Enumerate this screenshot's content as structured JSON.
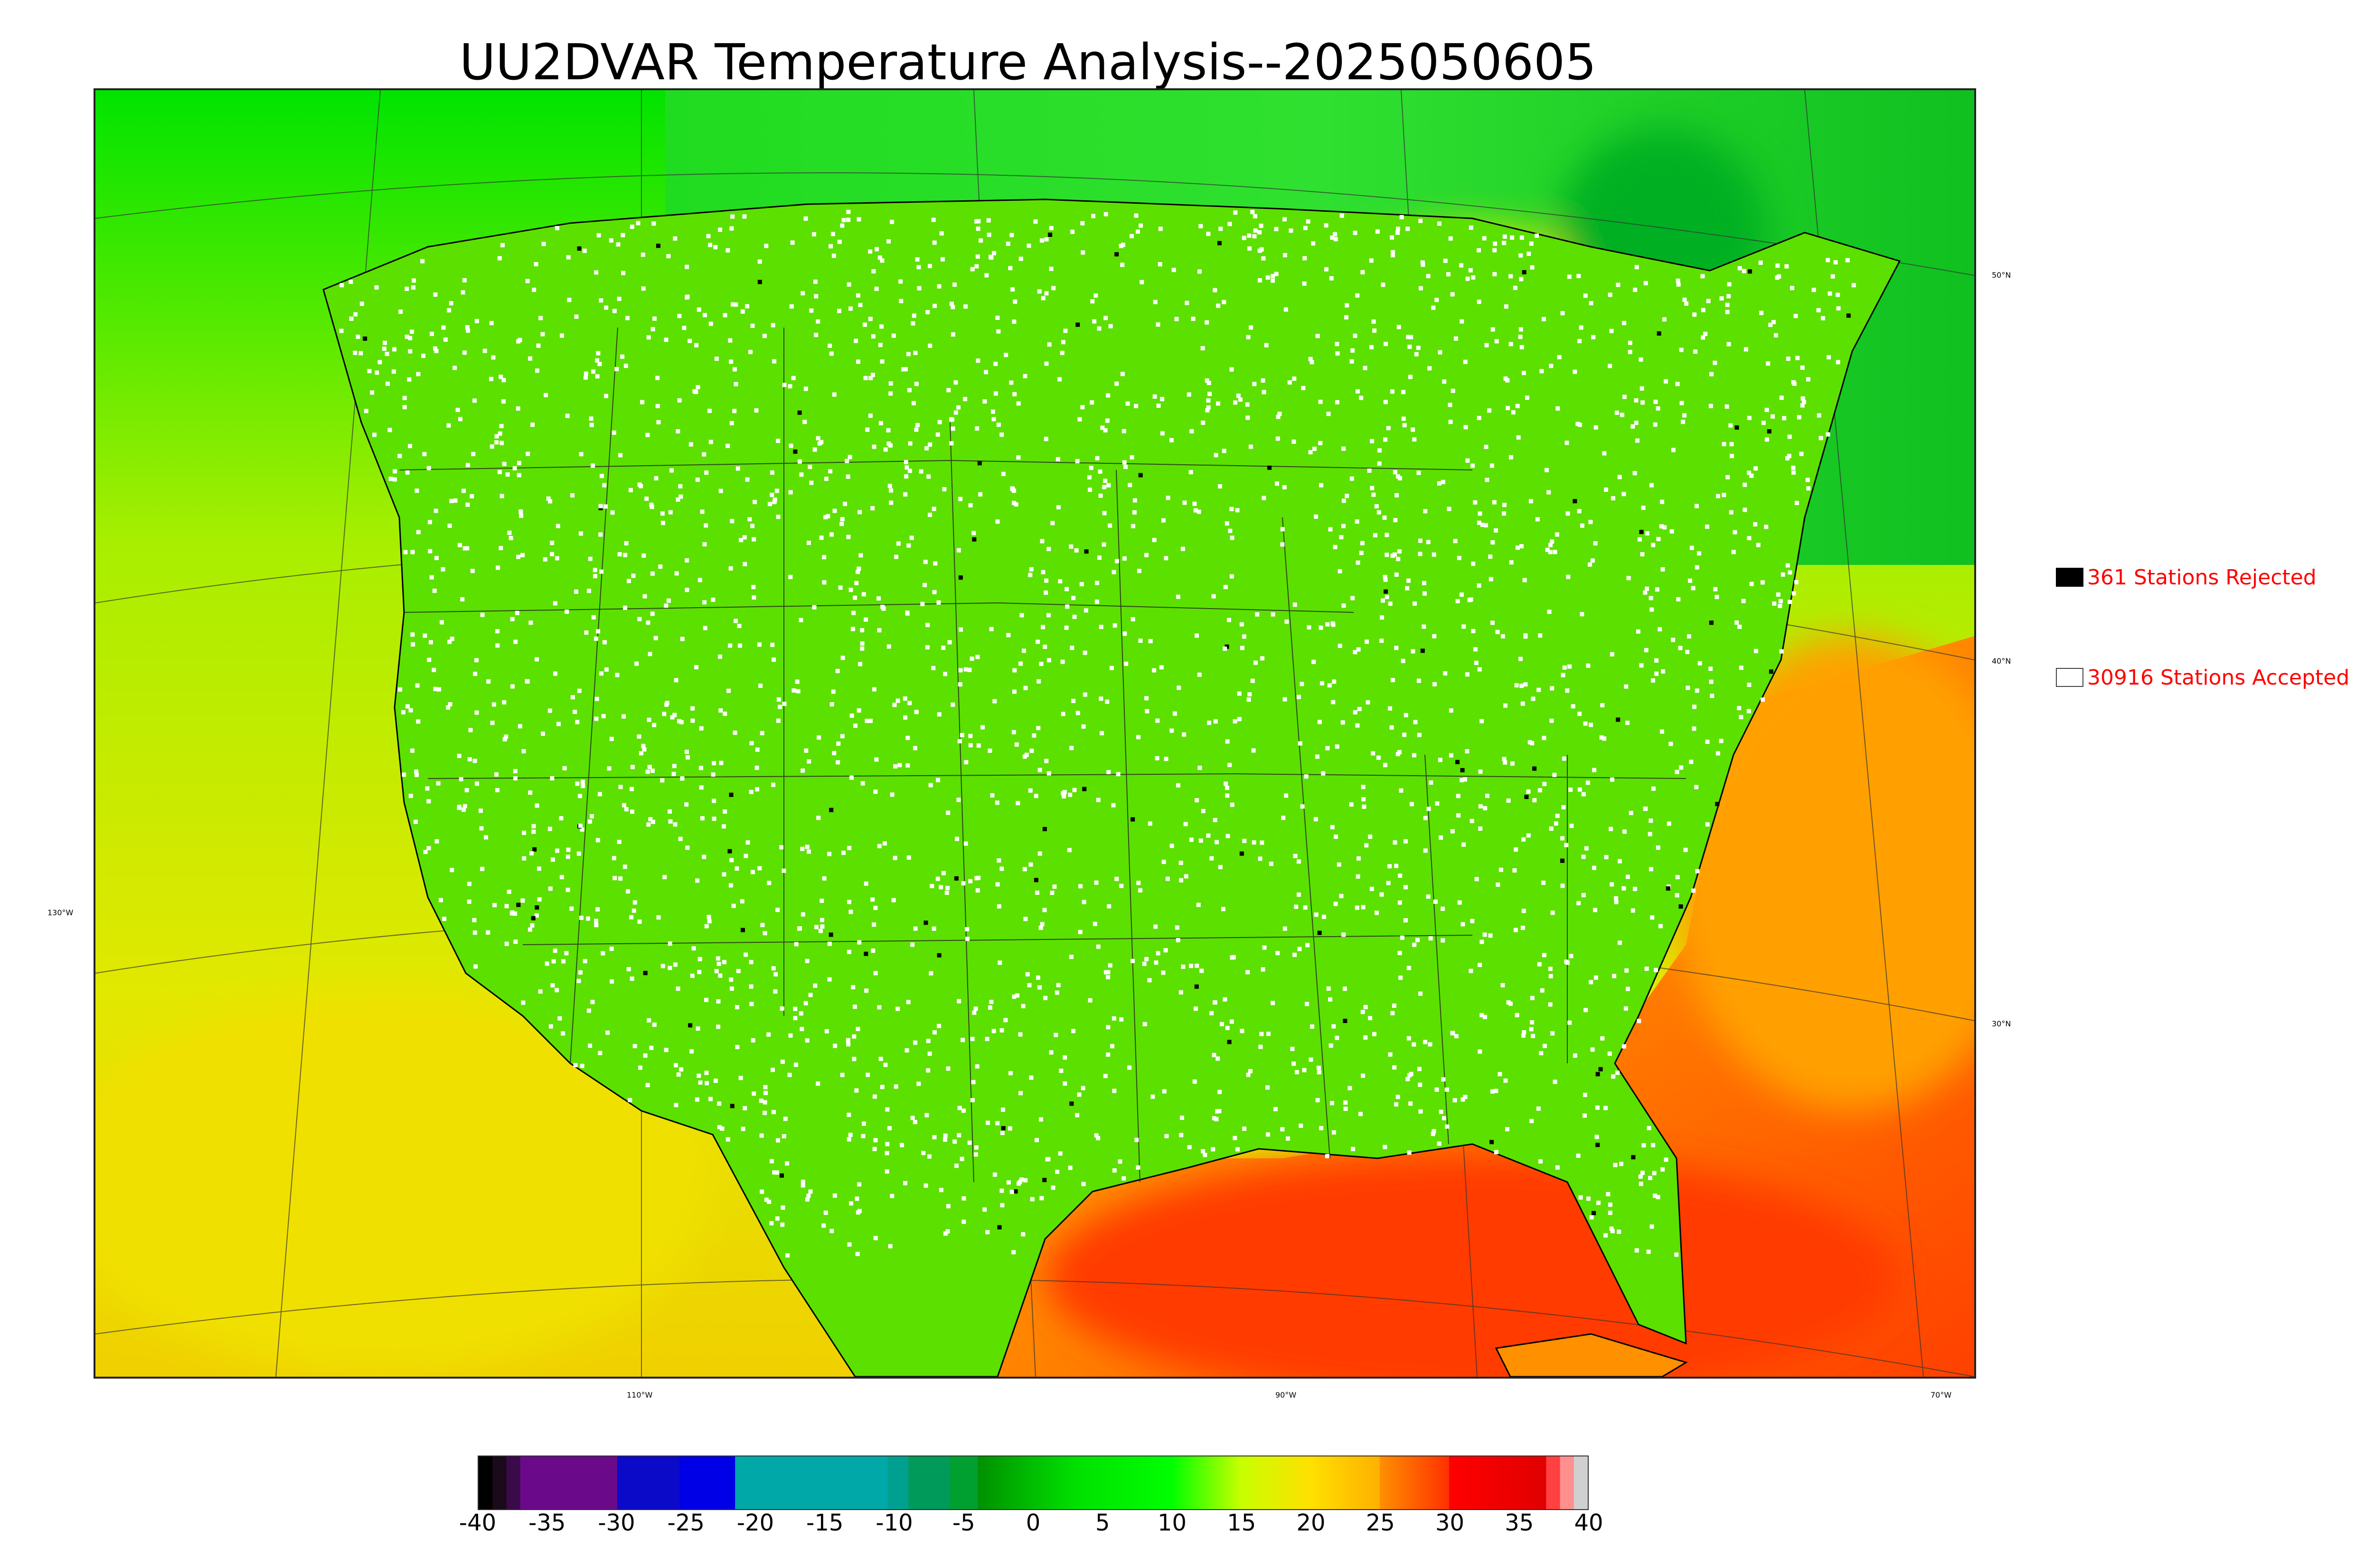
{
  "title": "UU2DVAR Temperature Analysis--2025050605",
  "map": {
    "lat_labels": [
      "50°N",
      "40°N",
      "30°N"
    ],
    "lon_labels": [
      "130°W",
      "110°W",
      "90°W",
      "70°W"
    ],
    "colors": {
      "ocean_south": "#ff5a00",
      "ocean_warm": "#ffb400",
      "pacific": "#c6e000",
      "land_cool": "#1ec81e",
      "land_mid": "#7de600",
      "land_warm": "#f2e600",
      "canada": "#26d726",
      "station_accepted": "#ffffff",
      "station_rejected": "#000000"
    }
  },
  "legend": {
    "rejected": {
      "count": "361",
      "label": "361 Stations Rejected"
    },
    "accepted": {
      "count": "30916",
      "label": "30916 Stations Accepted"
    }
  },
  "colorbar": {
    "min": -40,
    "max": 40,
    "ticks": [
      "-40",
      "-35",
      "-30",
      "-25",
      "-20",
      "-15",
      "-10",
      "-5",
      "0",
      "5",
      "10",
      "15",
      "20",
      "25",
      "30",
      "35",
      "40"
    ],
    "segments": [
      {
        "from": -40,
        "to": -39,
        "color": "#000000"
      },
      {
        "from": -39,
        "to": -38,
        "color": "#1a0a1a"
      },
      {
        "from": -38,
        "to": -37,
        "color": "#3a0a4a"
      },
      {
        "from": -37,
        "to": -30,
        "color": "#6a0a8a"
      },
      {
        "from": -30,
        "to": -25.5,
        "color": "#0a0ac8"
      },
      {
        "from": -25.5,
        "to": -21.5,
        "color": "#0000e6"
      },
      {
        "from": -21.5,
        "to": -10.5,
        "color": "#00a8a8"
      },
      {
        "from": -10.5,
        "to": -9,
        "color": "#00a090"
      },
      {
        "from": -9,
        "to": -6,
        "color": "#009a5a"
      },
      {
        "from": -6,
        "to": -4,
        "color": "#00a030"
      },
      {
        "from": -4,
        "to": 10,
        "gradient": [
          "#009000",
          "#00e000",
          "#00ff00"
        ]
      },
      {
        "from": 10,
        "to": 25,
        "gradient": [
          "#00ff00",
          "#c8ff00",
          "#ffe000",
          "#ffb000"
        ]
      },
      {
        "from": 25,
        "to": 30,
        "gradient": [
          "#ff9000",
          "#ff3000"
        ]
      },
      {
        "from": 30,
        "to": 37,
        "gradient": [
          "#ff0000",
          "#e00000"
        ]
      },
      {
        "from": 37,
        "to": 38,
        "color": "#ff4040"
      },
      {
        "from": 38,
        "to": 39,
        "color": "#ff9090"
      },
      {
        "from": 39,
        "to": 40,
        "color": "#d0d0d0"
      }
    ]
  }
}
